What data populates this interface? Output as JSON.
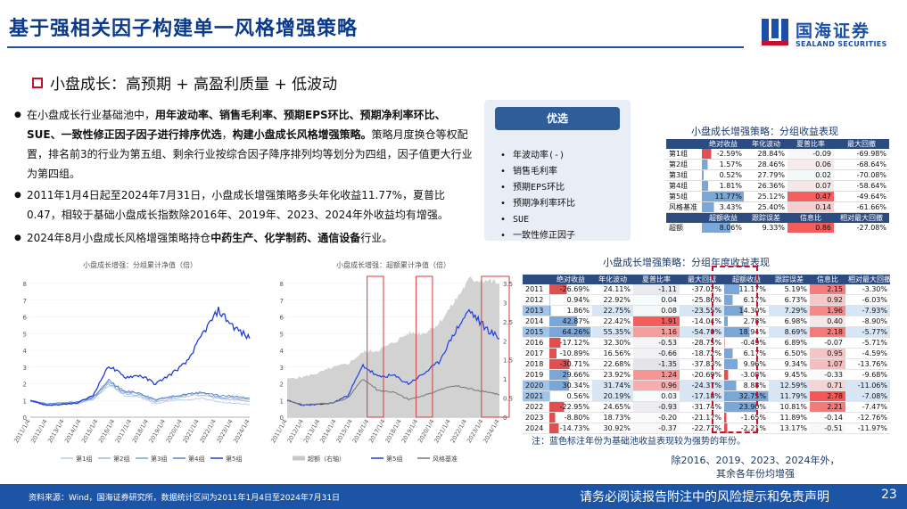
{
  "title": "基于强相关因子构建单一风格增强策略",
  "logo": {
    "cn": "国海证券",
    "en": "SEALAND SECURITIES"
  },
  "subhead": "小盘成长：高预期 + 高盈利质量 + 低波动",
  "bullets": {
    "b1_a": "在小盘成长行业基础池中，",
    "b1_b": "用年波动率、销售毛利率、预期EPS环比、预期净利率环比、SUE、一致性修正因子因子进行排序优选",
    "b1_c": "，",
    "b1_d": "构建小盘成长风格增强策略。",
    "b1_e": "策略月度换仓等权配置，排名前3的行业为第五组、剩余行业按综合因子降序排列均等划分为四组，因子值更大行业为第四组。",
    "b2": "2011年1月4日起至2024年7月31日，小盘成长增强策略多头年化收益11.77%，夏普比0.47，相较于基础小盘成长指数除2016年、2019年、2023、2024年外收益均有增强。",
    "b3_a": "2024年8月小盘成长风格增强策略持仓",
    "b3_b": "中药生产、化学制药、通信设备",
    "b3_c": "行业。"
  },
  "pick": {
    "head": "优选",
    "items": [
      "年波动率(-)",
      "销售毛利率",
      "预期EPS环比",
      "预期净利率环比",
      "SUE",
      "一致性修正因子"
    ]
  },
  "table1": {
    "caption": "小盘成长增强策略：分组收益表现",
    "headers": [
      "",
      "绝对收益",
      "年化波动",
      "夏普比率",
      "最大回撤"
    ],
    "rows": [
      [
        "第1组",
        "-2.59%",
        "28.84%",
        "-0.09",
        "-69.98%"
      ],
      [
        "第2组",
        "1.57%",
        "28.46%",
        "0.06",
        "-68.64%"
      ],
      [
        "第3组",
        "0.52%",
        "27.79%",
        "0.02",
        "-70.08%"
      ],
      [
        "第4组",
        "1.81%",
        "26.36%",
        "0.07",
        "-58.64%"
      ],
      [
        "第5组",
        "11.77%",
        "25.12%",
        "0.47",
        "-49.64%"
      ],
      [
        "风格基准",
        "3.43%",
        "25.40%",
        "0.14",
        "-61.66%"
      ]
    ],
    "headers2": [
      "",
      "超额收益",
      "跟踪误差",
      "信息比",
      "相对最大回撤"
    ],
    "row2": [
      "超额",
      "8.06%",
      "9.33%",
      "0.86",
      "-27.08%"
    ]
  },
  "table2": {
    "caption": "小盘成长增强策略：分组年度收益表现",
    "headers": [
      "",
      "绝对收益",
      "年化波动",
      "夏普比率",
      "最大回撤",
      "超额收益",
      "跟踪误差",
      "信息比",
      "相对最大回撤"
    ],
    "rows": [
      [
        "2011",
        "-26.69%",
        "24.11%",
        "-1.11",
        "-37.02%",
        "11.17%",
        "5.19%",
        "2.15",
        "-3.30%"
      ],
      [
        "2012",
        "0.94%",
        "22.92%",
        "0.04",
        "-25.86%",
        "6.17%",
        "6.73%",
        "0.92",
        "-6.03%"
      ],
      [
        "2013",
        "1.86%",
        "22.75%",
        "0.08",
        "-23.55%",
        "14.30%",
        "7.29%",
        "1.96",
        "-7.93%"
      ],
      [
        "2014",
        "42.87%",
        "22.42%",
        "1.91",
        "-14.04%",
        "2.78%",
        "6.98%",
        "0.40",
        "-8.90%"
      ],
      [
        "2015",
        "64.26%",
        "55.35%",
        "1.16",
        "-54.70%",
        "18.94%",
        "8.69%",
        "2.18",
        "-5.77%"
      ],
      [
        "2016",
        "-17.12%",
        "32.30%",
        "-0.53",
        "-28.75%",
        "-0.49%",
        "6.89%",
        "-0.07",
        "-5.71%"
      ],
      [
        "2017",
        "-10.89%",
        "16.56%",
        "-0.66",
        "-18.72%",
        "6.17%",
        "6.50%",
        "0.95",
        "-4.59%"
      ],
      [
        "2018",
        "-30.71%",
        "22.68%",
        "-1.35",
        "-37.83%",
        "9.96%",
        "9.34%",
        "1.07",
        "-13.76%"
      ],
      [
        "2019",
        "29.66%",
        "23.92%",
        "1.24",
        "-20.69%",
        "-3.08%",
        "9.45%",
        "-0.33",
        "-9.68%"
      ],
      [
        "2020",
        "30.34%",
        "31.74%",
        "0.96",
        "-24.37%",
        "8.88%",
        "12.59%",
        "0.71",
        "-11.06%"
      ],
      [
        "2021",
        "0.56%",
        "20.19%",
        "0.03",
        "-17.18%",
        "32.75%",
        "11.79%",
        "2.78",
        "-7.08%"
      ],
      [
        "2022",
        "-22.95%",
        "24.65%",
        "-0.93",
        "-31.74%",
        "23.90%",
        "10.81%",
        "2.21",
        "-7.47%"
      ],
      [
        "2023",
        "-8.80%",
        "18.73%",
        "-0.20",
        "-21.17%",
        "-1.65%",
        "11.89%",
        "-0.14",
        "-12.76%"
      ],
      [
        "2024",
        "-14.73%",
        "30.92%",
        "-0.37",
        "-22.77%",
        "-2.21%",
        "13.17%",
        "-0.51",
        "-11.97%"
      ]
    ]
  },
  "note1": "注：蓝色标注年份为基础池收益表现较为强势的年份。",
  "note2": "除2016、2019、2023、2024年外，其余各年份均增强",
  "chart_data": [
    {
      "type": "line",
      "title": "小盘成长增强：分组累计净值（倍）",
      "ylim": [
        0,
        8
      ],
      "yticks": [
        "0",
        "1",
        "2",
        "3",
        "4",
        "5",
        "6",
        "7",
        "8"
      ],
      "xticks": [
        "2011/1/4",
        "2012/1/4",
        "2013/1/4",
        "2014/1/4",
        "2015/1/4",
        "2016/1/4",
        "2017/1/4",
        "2018/1/4",
        "2019/1/4",
        "2020/1/4",
        "2021/1/4",
        "2022/1/4",
        "2023/1/4",
        "2024/1/4"
      ],
      "legend": [
        "第1组",
        "第2组",
        "第3组",
        "第4组",
        "第5组"
      ],
      "series_colors": [
        "#b9cbe6",
        "#9fb6dc",
        "#7c9fd2",
        "#5a84c4",
        "#1f3fd6"
      ],
      "series": [
        {
          "name": "第1组",
          "values": [
            1,
            0.75,
            0.8,
            0.8,
            1.05,
            1.9,
            1.3,
            1.2,
            0.8,
            1.0,
            1.05,
            1.15,
            0.9,
            0.85,
            0.75
          ]
        },
        {
          "name": "第2组",
          "values": [
            1,
            0.8,
            0.85,
            0.85,
            1.1,
            2.0,
            1.4,
            1.3,
            0.9,
            1.1,
            1.25,
            1.35,
            1.1,
            1.05,
            0.95
          ]
        },
        {
          "name": "第3组",
          "values": [
            1,
            0.8,
            0.85,
            0.9,
            1.15,
            2.1,
            1.5,
            1.4,
            1.0,
            1.2,
            1.35,
            1.45,
            1.2,
            1.15,
            1.05
          ]
        },
        {
          "name": "第4组",
          "values": [
            1,
            0.8,
            0.85,
            0.9,
            1.2,
            2.2,
            1.55,
            1.45,
            1.05,
            1.25,
            1.4,
            1.5,
            1.3,
            1.25,
            1.15
          ]
        },
        {
          "name": "第5组",
          "values": [
            1,
            0.72,
            0.75,
            0.85,
            1.3,
            3.1,
            2.4,
            2.5,
            2.0,
            2.6,
            3.3,
            5.0,
            6.4,
            5.4,
            4.7
          ]
        }
      ]
    },
    {
      "type": "line",
      "title": "小盘成长增强：超额累计净值（倍）",
      "ylim": [
        0,
        8
      ],
      "y2lim": [
        0,
        3.5
      ],
      "yticks": [
        "0",
        "1",
        "2",
        "3",
        "4",
        "5",
        "6",
        "7",
        "8"
      ],
      "y2ticks": [
        "0",
        "0.5",
        "1",
        "1.5",
        "2",
        "2.5",
        "3",
        "3.5"
      ],
      "xticks": [
        "2011/1/4",
        "2012/1/4",
        "2013/1/4",
        "2014/1/4",
        "2015/1/4",
        "2016/1/4",
        "2017/1/4",
        "2018/1/4",
        "2019/1/4",
        "2020/1/4",
        "2021/1/4",
        "2022/1/4",
        "2023/1/4",
        "2024/1/4"
      ],
      "legend": [
        "超额（右轴）",
        "第5组",
        "风格基准"
      ],
      "series": [
        {
          "name": "超额（右轴）",
          "values": [
            1,
            1.05,
            1.15,
            1.3,
            1.4,
            1.7,
            1.75,
            1.95,
            2.2,
            2.2,
            2.45,
            3.0,
            3.6,
            3.6,
            3.5
          ]
        },
        {
          "name": "第5组",
          "values": [
            1,
            0.72,
            0.75,
            0.85,
            1.3,
            3.1,
            2.4,
            2.5,
            2.0,
            2.6,
            3.3,
            5.0,
            6.4,
            5.4,
            4.7
          ]
        },
        {
          "name": "风格基准",
          "values": [
            1,
            0.75,
            0.8,
            0.85,
            1.15,
            2.3,
            1.6,
            1.5,
            1.05,
            1.3,
            1.6,
            1.9,
            1.7,
            1.55,
            1.35
          ]
        }
      ]
    }
  ],
  "footer": {
    "source": "资料来源：Wind，国海证券研究所，数据统计区间为2011年1月4日至2024年7月31日",
    "disclaimer": "请务必阅读报告附注中的风险提示和免责声明",
    "page": "23"
  }
}
